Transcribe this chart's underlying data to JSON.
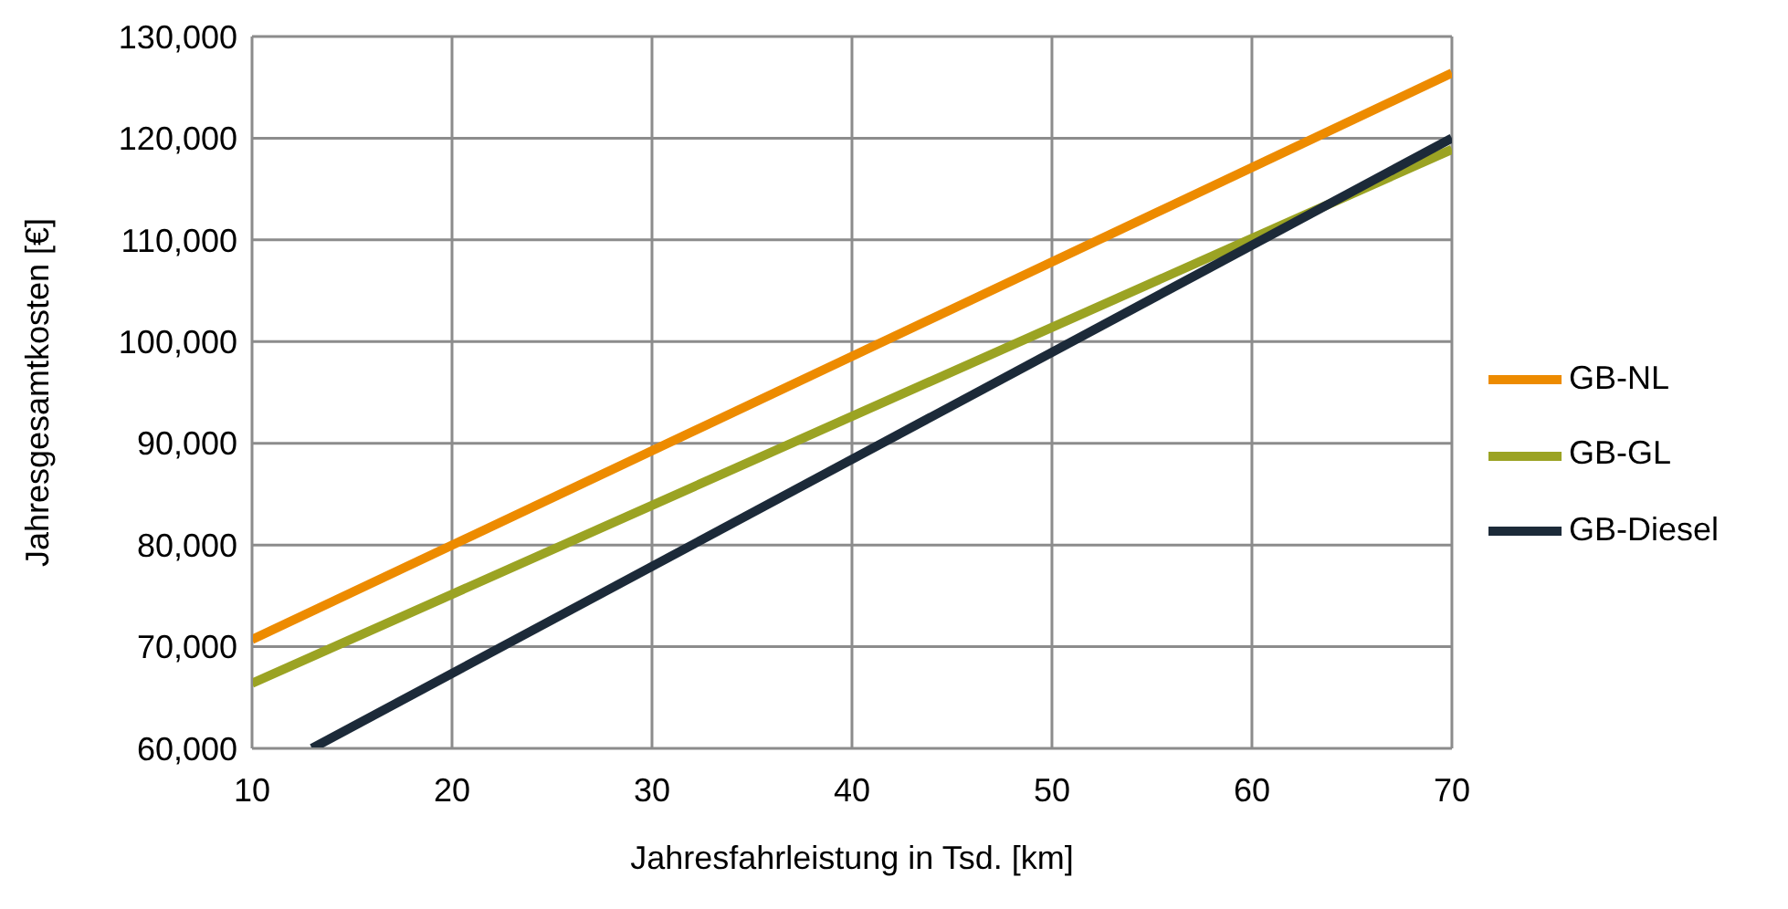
{
  "chart_data": {
    "type": "line",
    "xlabel": "Jahresfahrleistung in Tsd. [km]",
    "ylabel": "Jahresgesamtkosten [€]",
    "xlim": [
      10,
      70
    ],
    "xticks": [
      10,
      20,
      30,
      40,
      50,
      60,
      70
    ],
    "ylim": [
      60000,
      130000
    ],
    "yticks": [
      {
        "value": 60000,
        "label": "60,000"
      },
      {
        "value": 70000,
        "label": "70,000"
      },
      {
        "value": 80000,
        "label": "80,000"
      },
      {
        "value": 90000,
        "label": "90,000"
      },
      {
        "value": 100000,
        "label": "100,000"
      },
      {
        "value": 110000,
        "label": "110,000"
      },
      {
        "value": 120000,
        "label": "120,000"
      },
      {
        "value": 130000,
        "label": "130,000"
      }
    ],
    "grid": true,
    "legend": "right",
    "marker": "none",
    "line_style": "solid",
    "series": [
      {
        "name": "GB-NL",
        "color": "#ed8b00",
        "x": [
          10,
          70
        ],
        "values": [
          70700,
          126400
        ]
      },
      {
        "name": "GB-GL",
        "color": "#9ba323",
        "x": [
          10,
          70
        ],
        "values": [
          66400,
          118900
        ]
      },
      {
        "name": "GB-Diesel",
        "color": "#1c2a39",
        "x": [
          13,
          70
        ],
        "values": [
          60000,
          120000
        ]
      }
    ]
  }
}
